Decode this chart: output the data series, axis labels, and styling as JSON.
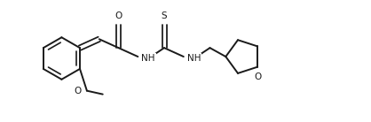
{
  "bg_color": "#ffffff",
  "line_color": "#1a1a1a",
  "line_width": 1.4,
  "font_size": 7.5,
  "figsize": [
    4.18,
    1.38
  ],
  "dpi": 100,
  "xlim": [
    0,
    4.18
  ],
  "ylim": [
    0,
    1.38
  ]
}
